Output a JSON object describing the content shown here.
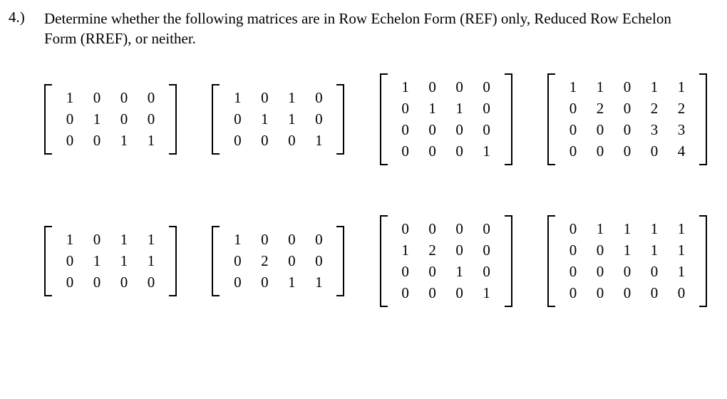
{
  "question": {
    "number": "4.)",
    "text": "Determine whether the following matrices are in Row Echelon Form (REF) only, Reduced Row Echelon Form (RREF), or neither."
  },
  "style": {
    "font_family": "Times New Roman",
    "font_size_pt": 16,
    "text_color": "#000000",
    "background_color": "#ffffff",
    "bracket_color": "#000000"
  },
  "layout": {
    "rows": 2,
    "matrices_per_row": 4
  },
  "matrices": [
    {
      "rows": 3,
      "cols": 4,
      "data": [
        [
          1,
          0,
          0,
          0
        ],
        [
          0,
          1,
          0,
          0
        ],
        [
          0,
          0,
          1,
          1
        ]
      ]
    },
    {
      "rows": 3,
      "cols": 4,
      "data": [
        [
          1,
          0,
          1,
          0
        ],
        [
          0,
          1,
          1,
          0
        ],
        [
          0,
          0,
          0,
          1
        ]
      ]
    },
    {
      "rows": 4,
      "cols": 4,
      "data": [
        [
          1,
          0,
          0,
          0
        ],
        [
          0,
          1,
          1,
          0
        ],
        [
          0,
          0,
          0,
          0
        ],
        [
          0,
          0,
          0,
          1
        ]
      ]
    },
    {
      "rows": 4,
      "cols": 5,
      "data": [
        [
          1,
          1,
          0,
          1,
          1
        ],
        [
          0,
          2,
          0,
          2,
          2
        ],
        [
          0,
          0,
          0,
          3,
          3
        ],
        [
          0,
          0,
          0,
          0,
          4
        ]
      ]
    },
    {
      "rows": 3,
      "cols": 4,
      "data": [
        [
          1,
          0,
          1,
          1
        ],
        [
          0,
          1,
          1,
          1
        ],
        [
          0,
          0,
          0,
          0
        ]
      ]
    },
    {
      "rows": 3,
      "cols": 4,
      "data": [
        [
          1,
          0,
          0,
          0
        ],
        [
          0,
          2,
          0,
          0
        ],
        [
          0,
          0,
          1,
          1
        ]
      ]
    },
    {
      "rows": 4,
      "cols": 4,
      "data": [
        [
          0,
          0,
          0,
          0
        ],
        [
          1,
          2,
          0,
          0
        ],
        [
          0,
          0,
          1,
          0
        ],
        [
          0,
          0,
          0,
          1
        ]
      ]
    },
    {
      "rows": 4,
      "cols": 5,
      "data": [
        [
          0,
          1,
          1,
          1,
          1
        ],
        [
          0,
          0,
          1,
          1,
          1
        ],
        [
          0,
          0,
          0,
          0,
          1
        ],
        [
          0,
          0,
          0,
          0,
          0
        ]
      ]
    }
  ]
}
